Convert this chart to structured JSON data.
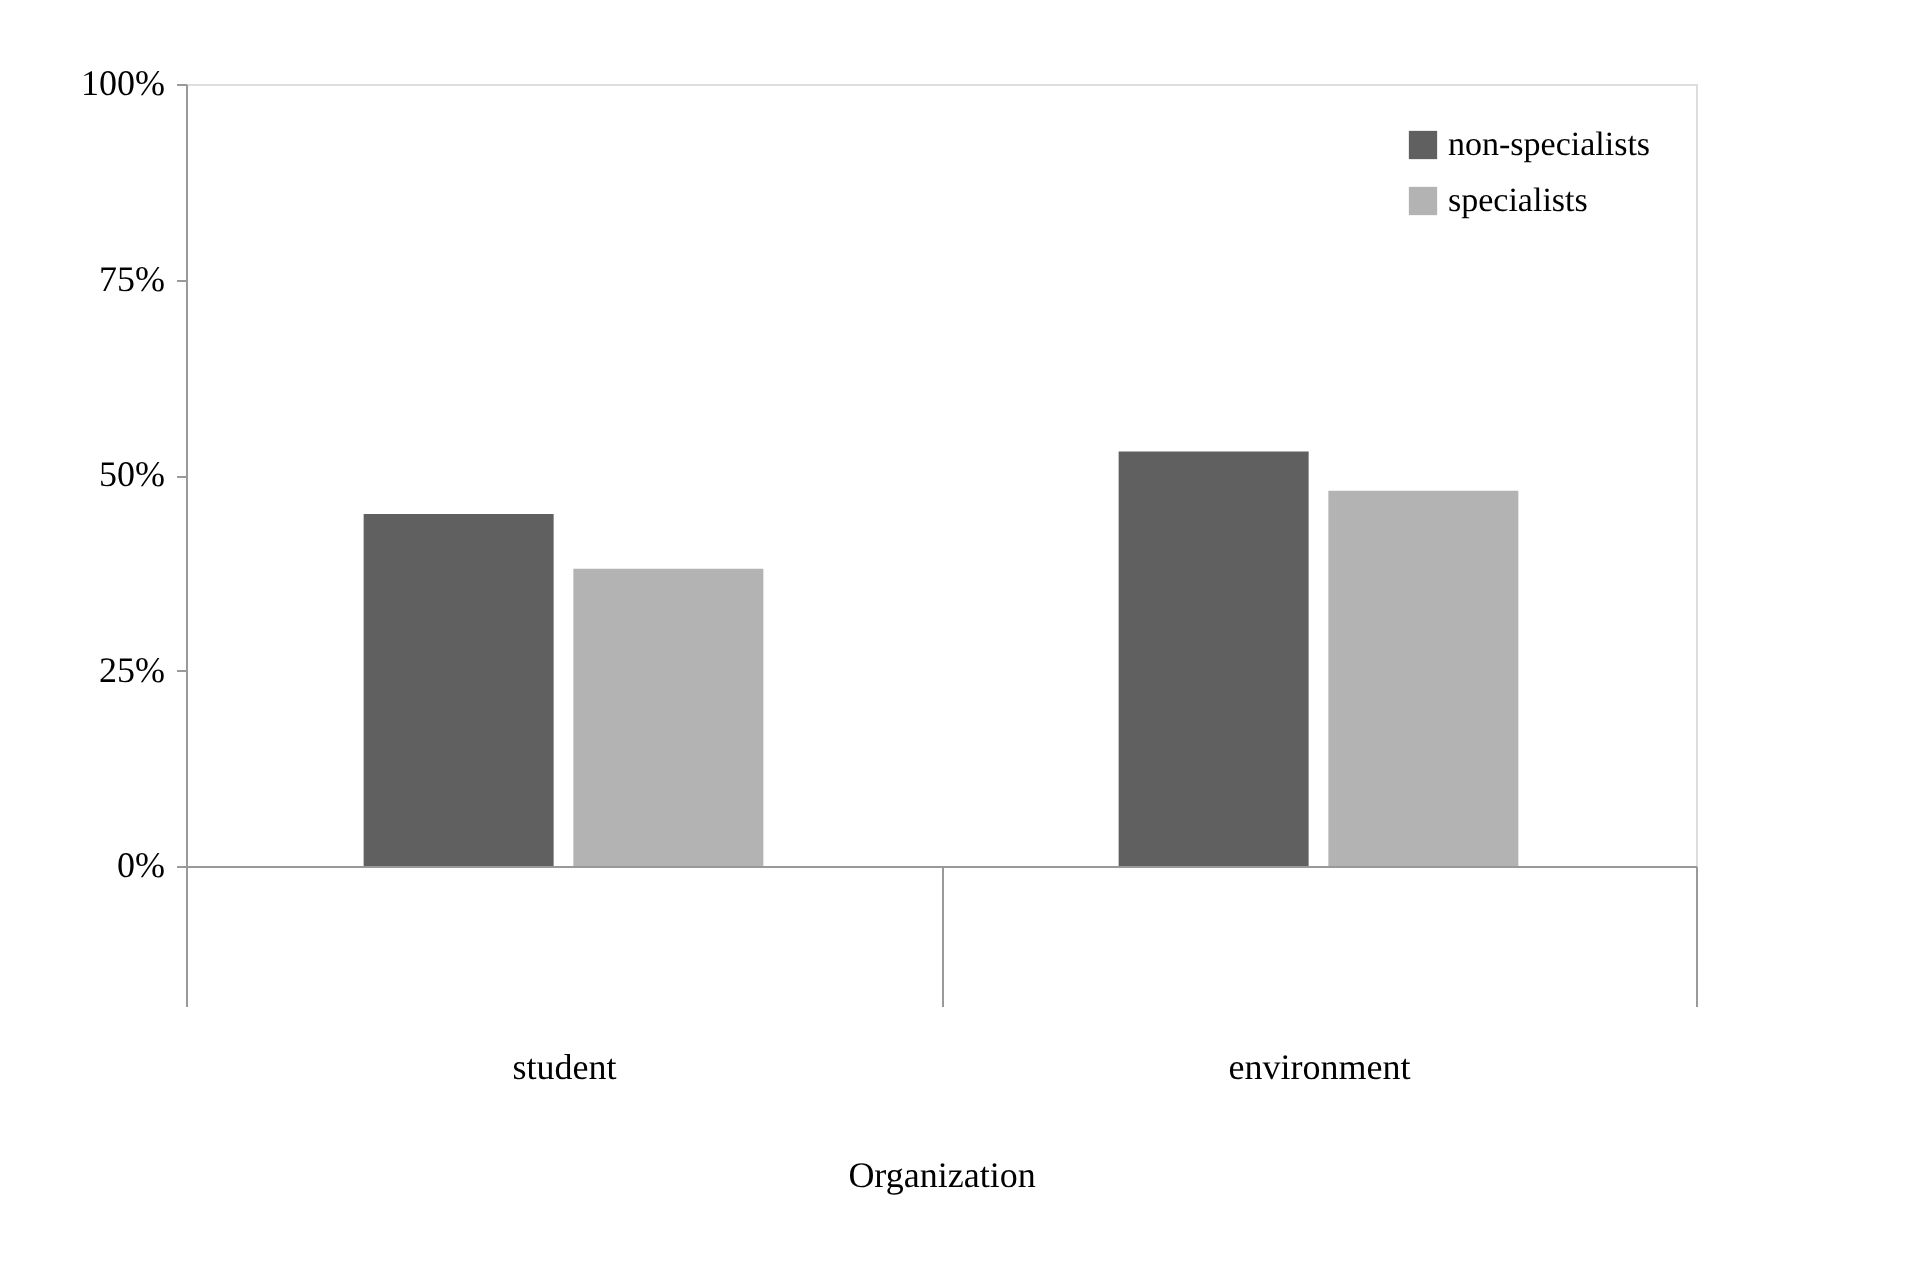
{
  "chart_data": {
    "type": "bar",
    "xlabel": "Organization",
    "categories": [
      "student",
      "environment"
    ],
    "series": [
      {
        "name": "non-specialists",
        "color": "#606060",
        "values": [
          45,
          53
        ]
      },
      {
        "name": "specialists",
        "color": "#b3b3b3",
        "values": [
          38,
          48
        ]
      }
    ],
    "ylim": [
      0,
      100
    ],
    "yticks": [
      {
        "value": 0,
        "label": "0%"
      },
      {
        "value": 25,
        "label": "25%"
      },
      {
        "value": 50,
        "label": "50%"
      },
      {
        "value": 75,
        "label": "75%"
      },
      {
        "value": 100,
        "label": "100%"
      }
    ],
    "grid": false,
    "legend": "top right"
  }
}
